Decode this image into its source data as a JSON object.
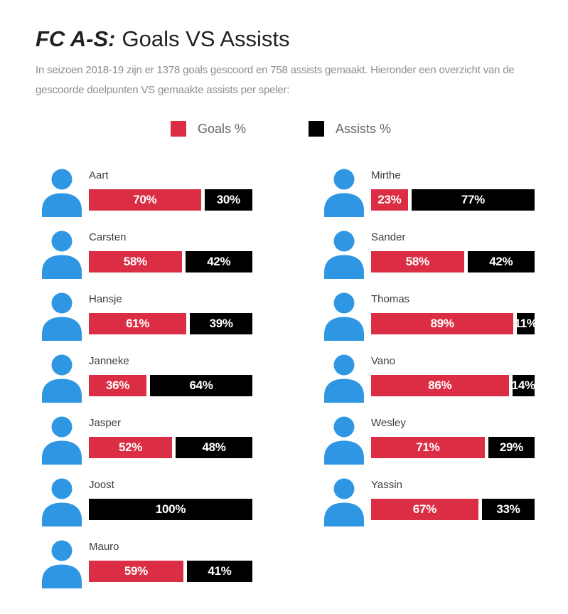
{
  "header": {
    "title_strong": "FC A-S:",
    "title_rest": "Goals VS Assists",
    "subtitle": "In seizoen 2018-19 zijn er 1378 goals gescoord en 758 assists gemaakt. Hieronder een overzicht van de gescoorde doelpunten VS gemaakte assists per speler:"
  },
  "legend": {
    "goals_label": "Goals %",
    "assists_label": "Assists %"
  },
  "colors": {
    "goals_red": "#db2e44",
    "assists_black": "#000000",
    "icon_blue": "#2e96e2"
  },
  "chart_data": {
    "type": "bar",
    "variant": "horizontal-stacked-100-percent",
    "title": "FC A-S: Goals VS Assists",
    "season_totals": {
      "goals": 1378,
      "assists": 758,
      "season": "2018-19"
    },
    "legend": [
      "Goals %",
      "Assists %"
    ],
    "series_colors": {
      "Goals %": "#db2e44",
      "Assists %": "#000000"
    },
    "unit": "%",
    "players": [
      {
        "name": "Aart",
        "goals_pct": 70,
        "assists_pct": 30,
        "column": "left",
        "row": 0
      },
      {
        "name": "Mirthe",
        "goals_pct": 23,
        "assists_pct": 77,
        "column": "right",
        "row": 0
      },
      {
        "name": "Carsten",
        "goals_pct": 58,
        "assists_pct": 42,
        "column": "left",
        "row": 1
      },
      {
        "name": "Sander",
        "goals_pct": 58,
        "assists_pct": 42,
        "column": "right",
        "row": 1
      },
      {
        "name": "Hansje",
        "goals_pct": 61,
        "assists_pct": 39,
        "column": "left",
        "row": 2
      },
      {
        "name": "Thomas",
        "goals_pct": 89,
        "assists_pct": 11,
        "column": "right",
        "row": 2
      },
      {
        "name": "Janneke",
        "goals_pct": 36,
        "assists_pct": 64,
        "column": "left",
        "row": 3
      },
      {
        "name": "Vano",
        "goals_pct": 86,
        "assists_pct": 14,
        "column": "right",
        "row": 3
      },
      {
        "name": "Jasper",
        "goals_pct": 52,
        "assists_pct": 48,
        "column": "left",
        "row": 4
      },
      {
        "name": "Wesley",
        "goals_pct": 71,
        "assists_pct": 29,
        "column": "right",
        "row": 4
      },
      {
        "name": "Joost",
        "goals_pct": 0,
        "assists_pct": 100,
        "column": "left",
        "row": 5
      },
      {
        "name": "Yassin",
        "goals_pct": 67,
        "assists_pct": 33,
        "column": "right",
        "row": 5
      },
      {
        "name": "Mauro",
        "goals_pct": 59,
        "assists_pct": 41,
        "column": "left",
        "row": 6
      }
    ]
  }
}
